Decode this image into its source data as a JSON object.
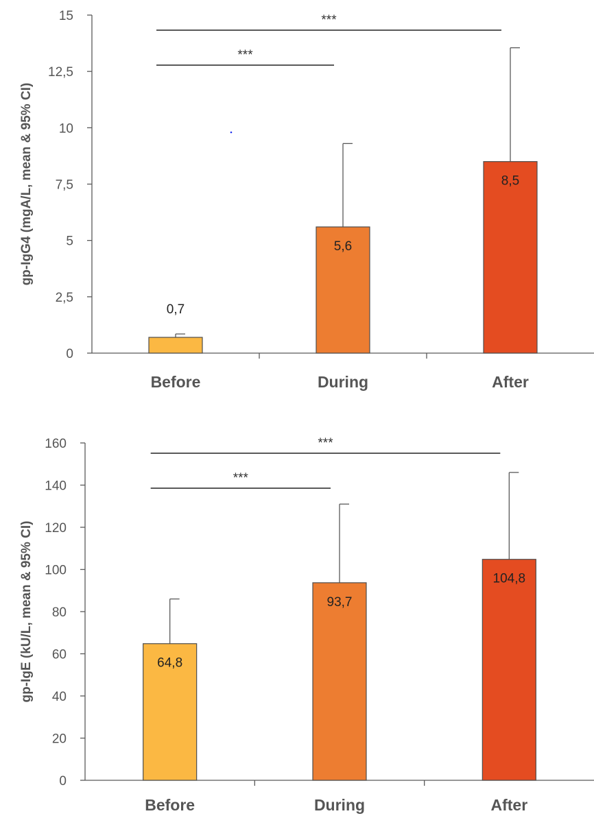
{
  "chart_data": [
    {
      "type": "bar",
      "categories": [
        "Before",
        "During",
        "After"
      ],
      "values": [
        0.7,
        5.6,
        8.5
      ],
      "data_labels": [
        "0,7",
        "5,6",
        "8,5"
      ],
      "error_upper": [
        0.85,
        9.3,
        13.55
      ],
      "ylabel": "gp-IgG4 (mgA/L, mean & 95% CI)",
      "ylim": [
        0,
        15
      ],
      "yticks": [
        0,
        2.5,
        5,
        7.5,
        10,
        12.5,
        15
      ],
      "ytick_labels": [
        "0",
        "2,5",
        "5",
        "7,5",
        "10",
        "12,5",
        "15"
      ],
      "colors": [
        "#fbb843",
        "#ed7d31",
        "#e44c21"
      ],
      "significance": [
        {
          "from": "Before",
          "to": "After",
          "label": "***"
        },
        {
          "from": "Before",
          "to": "During",
          "label": "***"
        }
      ],
      "grid": false
    },
    {
      "type": "bar",
      "categories": [
        "Before",
        "During",
        "After"
      ],
      "values": [
        64.8,
        93.7,
        104.8
      ],
      "data_labels": [
        "64,8",
        "93,7",
        "104,8"
      ],
      "error_upper": [
        86,
        131,
        146
      ],
      "ylabel": "gp-IgE (kU/L, mean & 95% CI)",
      "ylim": [
        0,
        160
      ],
      "yticks": [
        0,
        20,
        40,
        60,
        80,
        100,
        120,
        140,
        160
      ],
      "ytick_labels": [
        "0",
        "20",
        "40",
        "60",
        "80",
        "100",
        "120",
        "140",
        "160"
      ],
      "colors": [
        "#fbb843",
        "#ed7d31",
        "#e44c21"
      ],
      "significance": [
        {
          "from": "Before",
          "to": "After",
          "label": "***"
        },
        {
          "from": "Before",
          "to": "During",
          "label": "***"
        }
      ],
      "grid": false
    }
  ]
}
